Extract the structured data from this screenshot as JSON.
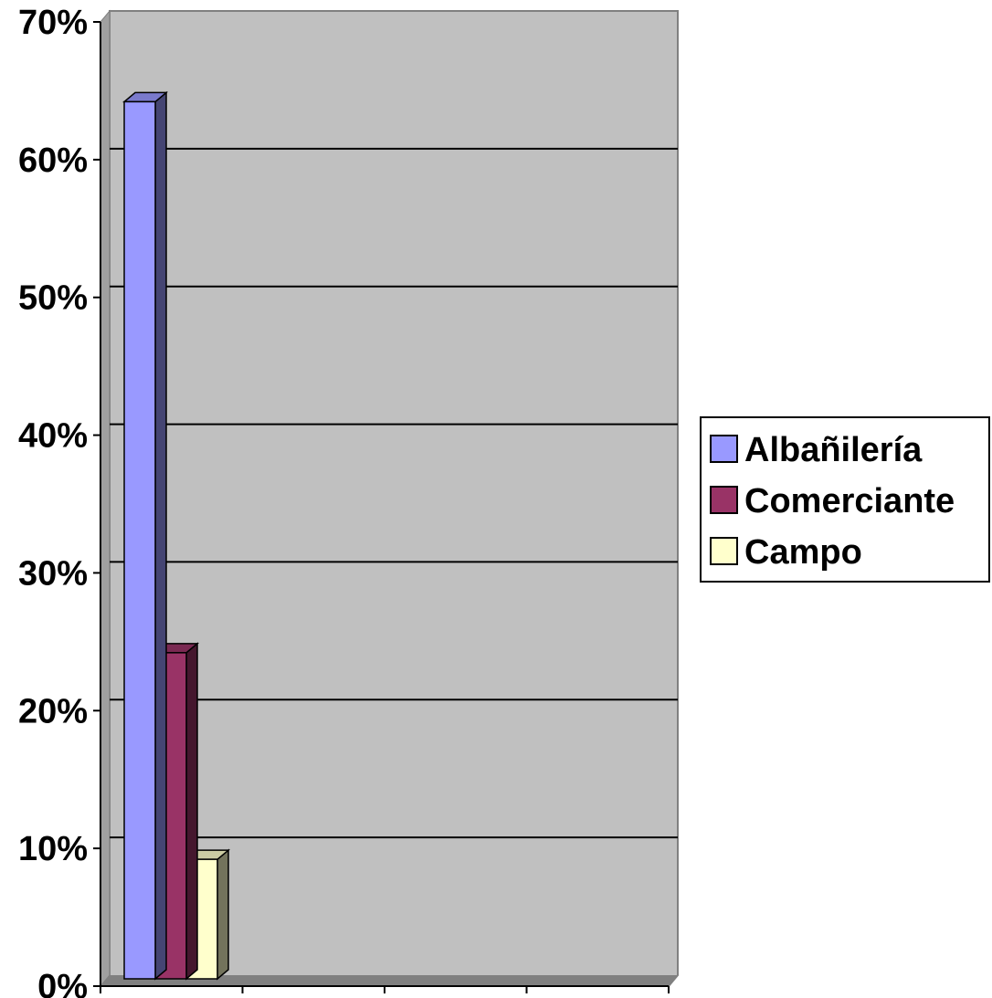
{
  "chart_data": {
    "type": "bar",
    "title": "",
    "xlabel": "",
    "ylabel": "",
    "ylim": [
      0,
      0.7
    ],
    "y_ticks": [
      "0%",
      "10%",
      "20%",
      "30%",
      "40%",
      "50%",
      "60%",
      "70%"
    ],
    "grid": true,
    "legend_position": "right",
    "series": [
      {
        "name": "Albañilería",
        "values": [
          0.65
        ],
        "color": "#9999ff"
      },
      {
        "name": "Comerciante",
        "values": [
          0.25
        ],
        "color": "#993366"
      },
      {
        "name": "Campo",
        "values": [
          0.1
        ],
        "color": "#ffffcc"
      }
    ],
    "categories": [
      ""
    ],
    "background_color": "#c0c0c0"
  }
}
